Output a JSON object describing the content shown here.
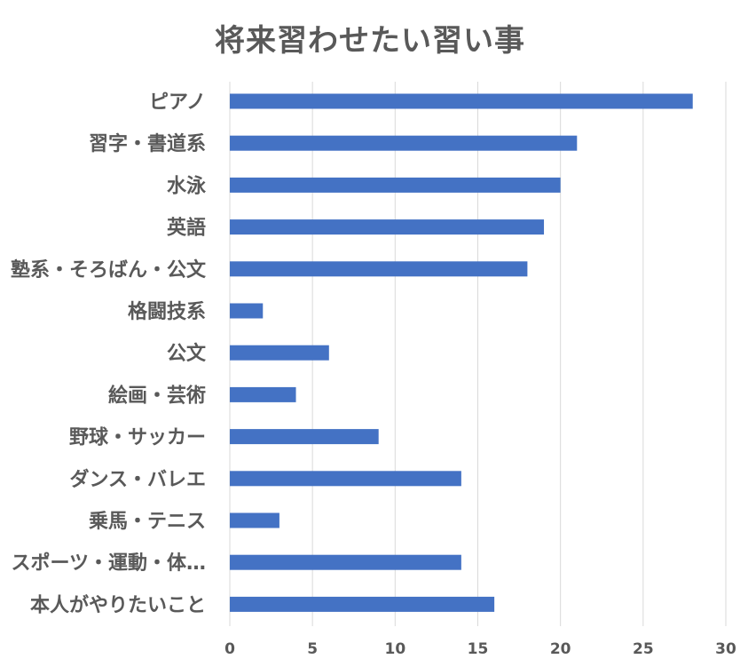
{
  "chart_data": {
    "type": "bar",
    "orientation": "horizontal",
    "title": "将来習わせたい習い事",
    "categories": [
      "ピアノ",
      "習字・書道系",
      "水泳",
      "英語",
      "塾系・そろばん・公文",
      "格闘技系",
      "公文",
      "絵画・芸術",
      "野球・サッカー",
      "ダンス・バレエ",
      "乗馬・テニス",
      "スポーツ・運動・体…",
      "本人がやりたいこと"
    ],
    "values": [
      28,
      21,
      20,
      19,
      18,
      2,
      6,
      4,
      9,
      14,
      3,
      14,
      16
    ],
    "xlim": [
      0,
      30
    ],
    "xticks": [
      "0",
      "5",
      "10",
      "15",
      "20",
      "25",
      "30"
    ],
    "grid": true,
    "legend": "none",
    "bar_color": "#4472C4",
    "grid_color": "#D9D9D9",
    "text_color": "#595959"
  }
}
